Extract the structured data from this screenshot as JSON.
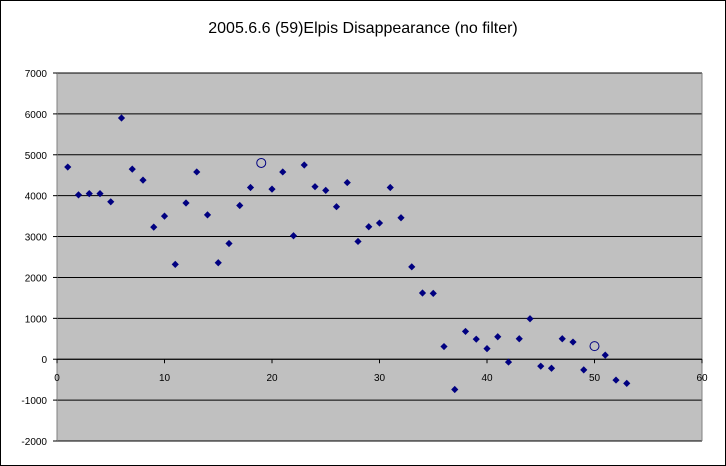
{
  "chart_data": {
    "type": "scatter",
    "title": "2005.6.6 (59)Elpis Disappearance (no filter)",
    "xlabel": "",
    "ylabel": "",
    "xlim": [
      0,
      60
    ],
    "ylim": [
      -2000,
      7000
    ],
    "x_ticks": [
      0,
      10,
      20,
      30,
      40,
      50,
      60
    ],
    "y_ticks": [
      7000,
      6000,
      5000,
      4000,
      3000,
      2000,
      1000,
      0,
      -1000,
      -2000
    ],
    "grid": "horizontal",
    "legend": "none",
    "colors": {
      "plot_background": "#c0c0c0",
      "marker": "#000080",
      "gridline": "#000000"
    },
    "series": [
      {
        "marker": "diamond",
        "points": [
          [
            1,
            4700
          ],
          [
            2,
            4020
          ],
          [
            3,
            4050
          ],
          [
            4,
            4050
          ],
          [
            5,
            3850
          ],
          [
            6,
            5900
          ],
          [
            7,
            4650
          ],
          [
            8,
            4380
          ],
          [
            9,
            3230
          ],
          [
            10,
            3500
          ],
          [
            11,
            2320
          ],
          [
            12,
            3820
          ],
          [
            13,
            4580
          ],
          [
            14,
            3530
          ],
          [
            15,
            2360
          ],
          [
            16,
            2830
          ],
          [
            17,
            3760
          ],
          [
            18,
            4200
          ],
          [
            20,
            4160
          ],
          [
            21,
            4580
          ],
          [
            22,
            3020
          ],
          [
            23,
            4750
          ],
          [
            24,
            4220
          ],
          [
            25,
            4130
          ],
          [
            26,
            3730
          ],
          [
            27,
            4320
          ],
          [
            28,
            2880
          ],
          [
            29,
            3240
          ],
          [
            30,
            3330
          ],
          [
            31,
            4200
          ],
          [
            32,
            3460
          ],
          [
            33,
            2260
          ],
          [
            34,
            1620
          ],
          [
            35,
            1610
          ],
          [
            36,
            310
          ],
          [
            37,
            -740
          ],
          [
            38,
            680
          ],
          [
            39,
            490
          ],
          [
            40,
            260
          ],
          [
            41,
            550
          ],
          [
            42,
            -70
          ],
          [
            43,
            500
          ],
          [
            44,
            990
          ],
          [
            45,
            -170
          ],
          [
            46,
            -220
          ],
          [
            47,
            500
          ],
          [
            48,
            420
          ],
          [
            49,
            -260
          ],
          [
            51,
            100
          ],
          [
            52,
            -510
          ],
          [
            53,
            -590
          ]
        ]
      },
      {
        "marker": "open-circle",
        "points": [
          [
            19,
            4800
          ],
          [
            50,
            320
          ]
        ]
      }
    ]
  }
}
